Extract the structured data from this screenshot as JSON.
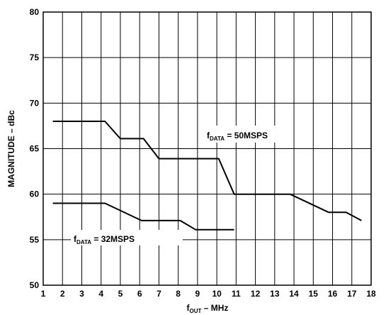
{
  "chart_data": {
    "type": "line",
    "xlabel": {
      "main": "f",
      "sub": "OUT",
      "rest": " – MHz"
    },
    "ylabel": "MAGNITUDE – dBc",
    "xlim": [
      1,
      18
    ],
    "ylim": [
      50,
      80
    ],
    "x_ticks": [
      1,
      2,
      3,
      4,
      5,
      6,
      7,
      8,
      9,
      10,
      11,
      12,
      13,
      14,
      15,
      16,
      17,
      18
    ],
    "y_ticks": [
      50,
      55,
      60,
      65,
      70,
      75,
      80
    ],
    "grid": true,
    "series": [
      {
        "label": {
          "main": "f",
          "sub": "DATA",
          "rest": " = 50MSPS"
        },
        "points": [
          [
            1.5,
            68
          ],
          [
            4.2,
            68
          ],
          [
            5.0,
            66.1
          ],
          [
            6.2,
            66.1
          ],
          [
            7.0,
            63.9
          ],
          [
            10.1,
            63.9
          ],
          [
            10.9,
            60
          ],
          [
            13.8,
            60
          ],
          [
            15.8,
            58
          ],
          [
            16.7,
            58
          ],
          [
            17.5,
            57.1
          ]
        ]
      },
      {
        "label": {
          "main": "f",
          "sub": "DATA",
          "rest": " = 32MSPS"
        },
        "points": [
          [
            1.5,
            59
          ],
          [
            4.2,
            59
          ],
          [
            6.1,
            57.1
          ],
          [
            8.1,
            57.1
          ],
          [
            8.9,
            56.1
          ],
          [
            10.9,
            56.1
          ]
        ]
      }
    ]
  }
}
